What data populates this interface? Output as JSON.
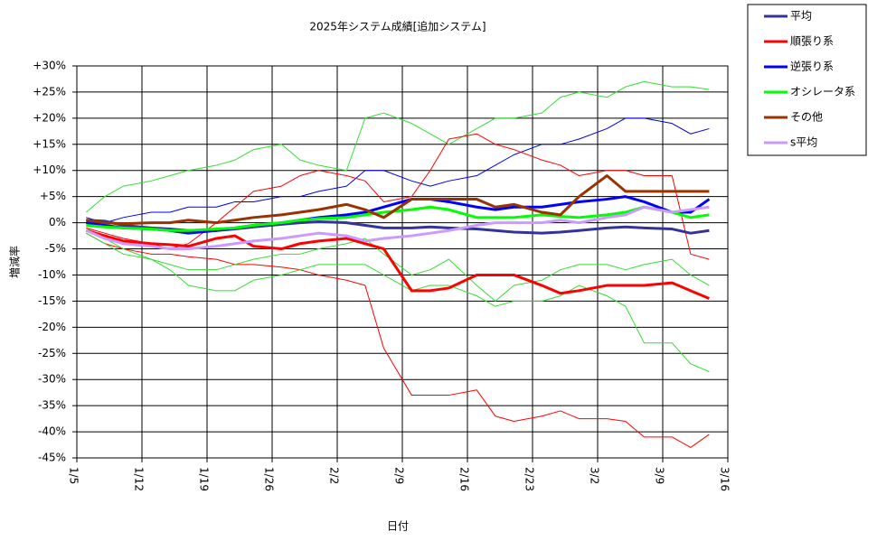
{
  "chart_data": {
    "type": "line",
    "title": "2025年システム成績[追加システム]",
    "xlabel": "日付",
    "ylabel": "増減率",
    "xlim": [
      0,
      70
    ],
    "xticks": [
      {
        "value": 0,
        "label": "1/5"
      },
      {
        "value": 7,
        "label": "1/12"
      },
      {
        "value": 14,
        "label": "1/19"
      },
      {
        "value": 21,
        "label": "1/26"
      },
      {
        "value": 28,
        "label": "2/2"
      },
      {
        "value": 35,
        "label": "2/9"
      },
      {
        "value": 42,
        "label": "2/16"
      },
      {
        "value": 49,
        "label": "2/23"
      },
      {
        "value": 56,
        "label": "3/2"
      },
      {
        "value": 63,
        "label": "3/9"
      },
      {
        "value": 70,
        "label": "3/16"
      }
    ],
    "ylim": [
      -45,
      30
    ],
    "yticks": [
      {
        "value": 30,
        "label": "+30%"
      },
      {
        "value": 25,
        "label": "+25%"
      },
      {
        "value": 20,
        "label": "+20%"
      },
      {
        "value": 15,
        "label": "+15%"
      },
      {
        "value": 10,
        "label": "+10%"
      },
      {
        "value": 5,
        "label": "+5%"
      },
      {
        "value": 0,
        "label": "0%"
      },
      {
        "value": -5,
        "label": "-5%"
      },
      {
        "value": -10,
        "label": "-10%"
      },
      {
        "value": -15,
        "label": "-15%"
      },
      {
        "value": -20,
        "label": "-20%"
      },
      {
        "value": -25,
        "label": "-25%"
      },
      {
        "value": -30,
        "label": "-30%"
      },
      {
        "value": -35,
        "label": "-35%"
      },
      {
        "value": -40,
        "label": "-40%"
      },
      {
        "value": -45,
        "label": "-45%"
      }
    ],
    "grid": true,
    "legend": "outside-top-right",
    "x": [
      1,
      3,
      5,
      8,
      10,
      12,
      15,
      17,
      19,
      22,
      24,
      26,
      29,
      31,
      33,
      36,
      38,
      40,
      43,
      45,
      47,
      50,
      52,
      54,
      57,
      59,
      61,
      64,
      66,
      68
    ],
    "series": [
      {
        "color": "#ff0000",
        "line_width": 1,
        "values": [
          -2,
          -4,
          -5,
          -6,
          -6,
          -6.5,
          -7,
          -8,
          -8,
          -8.5,
          -9,
          -10,
          -11,
          -12,
          -24,
          -33,
          -33,
          -33,
          -32,
          -37,
          -38,
          -37,
          -36,
          -37.5,
          -37.5,
          -38,
          -41,
          -41,
          -43,
          -40.5
        ]
      },
      {
        "color": "#33dd33",
        "line_width": 1,
        "values": [
          -1,
          -3,
          -5,
          -7,
          -9,
          -12,
          -13,
          -13,
          -11,
          -10,
          -9,
          -8,
          -8,
          -8,
          -10,
          -13,
          -12,
          -12,
          -14,
          -16,
          -15,
          -15,
          -14,
          -12,
          -14,
          -16,
          -23,
          -23,
          -27,
          -28.5
        ]
      },
      {
        "color": "#33dd33",
        "line_width": 1,
        "values": [
          2,
          5,
          7,
          8,
          9,
          10,
          11,
          12,
          14,
          15,
          12,
          11,
          10,
          20,
          21,
          19,
          17,
          15,
          18,
          20,
          20,
          21,
          24,
          25,
          24,
          26,
          27,
          26,
          26,
          25.5
        ]
      },
      {
        "color": "#0000ee",
        "line_width": 1,
        "values": [
          1,
          0,
          1,
          2,
          2,
          3,
          3,
          4,
          4,
          5,
          5,
          6,
          7,
          10,
          10,
          8,
          7,
          8,
          9,
          11,
          13,
          15,
          15,
          16,
          18,
          20,
          20,
          19,
          17,
          18
        ]
      },
      {
        "color": "#ff0000",
        "line_width": 1,
        "values": [
          -1,
          -2,
          -3,
          -4,
          -5,
          -4,
          0,
          3,
          6,
          7,
          9,
          10,
          9,
          8,
          4,
          5,
          10,
          16,
          17,
          15,
          14,
          12,
          11,
          9,
          10,
          10,
          9,
          9,
          -6,
          -7
        ]
      },
      {
        "color": "#33dd33",
        "line_width": 1,
        "values": [
          -2,
          -4,
          -6,
          -7,
          -8,
          -9,
          -9,
          -8,
          -7,
          -6,
          -6,
          -5,
          -4,
          -3,
          -6,
          -10,
          -9,
          -7,
          -12,
          -15,
          -12,
          -11,
          -9,
          -8,
          -8,
          -9,
          -8,
          -7,
          -10,
          -12
        ]
      },
      {
        "name": "平均",
        "color": "#333399",
        "line_width": 3,
        "values": [
          0.5,
          0.3,
          -0.5,
          -1,
          -1.2,
          -1.5,
          -1.5,
          -1.2,
          -0.8,
          -0.3,
          0,
          0.2,
          0,
          -0.5,
          -1,
          -1,
          -0.8,
          -1,
          -1.2,
          -1.5,
          -1.8,
          -2,
          -1.8,
          -1.5,
          -1,
          -0.8,
          -1,
          -1.2,
          -2,
          -1.5
        ]
      },
      {
        "name": "順張り系",
        "color": "#ff0000",
        "line_width": 3,
        "values": [
          -1.5,
          -2.5,
          -3.5,
          -4,
          -4.2,
          -4.5,
          -3,
          -2.5,
          -4.5,
          -5,
          -4,
          -3.5,
          -3,
          -4,
          -5,
          -13,
          -13,
          -12.5,
          -10,
          -10,
          -10,
          -12,
          -13.5,
          -13,
          -12,
          -12,
          -12,
          -11.5,
          -13,
          -14.5
        ]
      },
      {
        "name": "逆張り系",
        "color": "#0000ff",
        "line_width": 3,
        "values": [
          0,
          -0.5,
          -1,
          -1.2,
          -1.5,
          -2,
          -1.5,
          -1,
          -0.5,
          0,
          0.5,
          1,
          1.5,
          2,
          3,
          4.5,
          4.5,
          4,
          3,
          2.5,
          3,
          3,
          3.5,
          4,
          4.5,
          5,
          4,
          2,
          2,
          4.5
        ]
      },
      {
        "name": "オシレータ系",
        "color": "#00ff00",
        "line_width": 3,
        "values": [
          -0.5,
          -0.8,
          -1,
          -1.2,
          -1.5,
          -1.5,
          -1.2,
          -1,
          -0.5,
          0,
          0.5,
          0.8,
          1,
          1.5,
          2,
          2.5,
          3,
          2.5,
          1,
          1,
          1,
          1.5,
          1.2,
          1,
          1.5,
          2,
          3,
          2,
          1,
          1.5
        ]
      },
      {
        "name": "その他",
        "color": "#993300",
        "line_width": 3,
        "values": [
          0.5,
          0,
          -0.2,
          0,
          0,
          0.5,
          0,
          0.5,
          1,
          1.5,
          2,
          2.5,
          3.5,
          2.5,
          1,
          4.5,
          4.5,
          4.5,
          4.5,
          3,
          3.5,
          2,
          1.5,
          5,
          9,
          6,
          6,
          6,
          6,
          6
        ]
      },
      {
        "name": "s平均",
        "color": "#cc99ff",
        "line_width": 3,
        "values": [
          -1.5,
          -3,
          -4,
          -4.5,
          -5,
          -5,
          -4.5,
          -4,
          -3.5,
          -3,
          -2.5,
          -2,
          -2.5,
          -3.5,
          -3,
          -2.5,
          -2,
          -1.5,
          -0.5,
          0,
          0,
          0,
          0.5,
          0,
          1,
          1.5,
          3,
          2,
          2.5,
          3
        ]
      }
    ]
  }
}
